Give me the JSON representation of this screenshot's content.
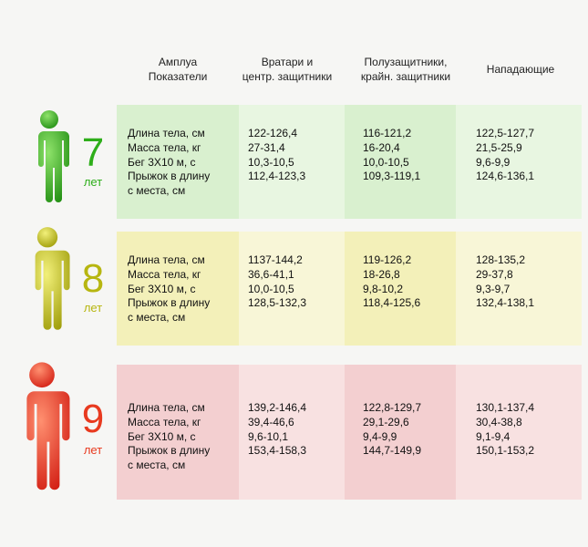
{
  "header": {
    "col0": [
      "Амплуа",
      "Показатели"
    ],
    "col1": [
      "Вратари и",
      "центр. защитники"
    ],
    "col2": [
      "Полузащитники,",
      "крайн. защитники"
    ],
    "col3": "Нападающие"
  },
  "age_unit": "лет",
  "metrics": [
    "Длина тела, см",
    "Масса тела, кг",
    "Бег 3Х10 м, с",
    "Прыжок в длину",
    "с места, см"
  ],
  "groups": [
    {
      "age": "7",
      "color": "#2eae1a",
      "goalkeepers": [
        "122-126,4",
        "27-31,4",
        "10,3-10,5",
        "112,4-123,3"
      ],
      "midfielders": [
        "116-121,2",
        "16-20,4",
        "10,0-10,5",
        "109,3-119,1"
      ],
      "forwards": [
        "122,5-127,7",
        "21,5-25,9",
        "9,6-9,9",
        "124,6-136,1"
      ]
    },
    {
      "age": "8",
      "color": "#b7b610",
      "goalkeepers": [
        "1137-144,2",
        "36,6-41,1",
        "10,0-10,5",
        "128,5-132,3"
      ],
      "midfielders": [
        "119-126,2",
        "18-26,8",
        "9,8-10,2",
        "118,4-125,6"
      ],
      "forwards": [
        "128-135,2",
        "29-37,8",
        "9,3-9,7",
        "132,4-138,1"
      ]
    },
    {
      "age": "9",
      "color": "#e83a1f",
      "goalkeepers": [
        "139,2-146,4",
        "39,4-46,6",
        "9,6-10,1",
        "153,4-158,3"
      ],
      "midfielders": [
        "122,8-129,7",
        "29,1-29,6",
        "9,4-9,9",
        "144,7-149,9"
      ],
      "forwards": [
        "130,1-137,4",
        "30,4-38,8",
        "9,1-9,4",
        "150,1-153,2"
      ]
    }
  ]
}
